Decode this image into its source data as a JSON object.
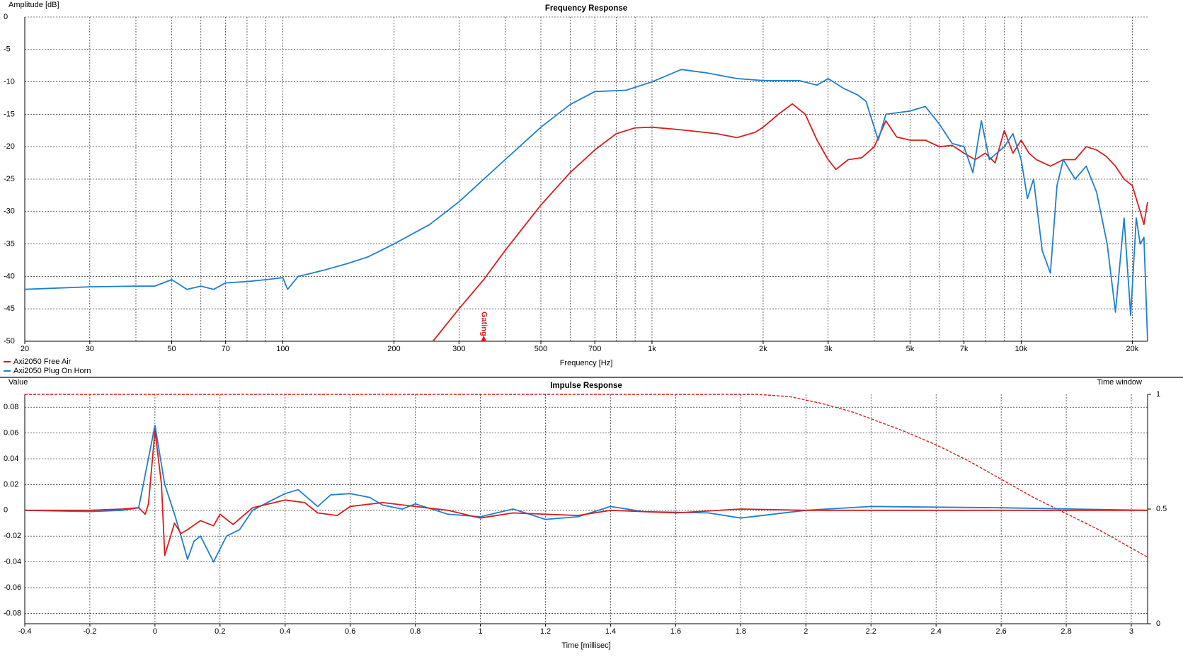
{
  "chart_data": [
    {
      "type": "line",
      "title": "Frequency Response",
      "ylabel": "Amplitude [dB]",
      "xlabel": "Frequency [Hz]",
      "xlog": true,
      "xlim": [
        20,
        22000
      ],
      "xticks": [
        20,
        30,
        50,
        70,
        100,
        200,
        300,
        500,
        700,
        {
          "value": 1000,
          "label": "1k"
        },
        {
          "value": 2000,
          "label": "2k"
        },
        {
          "value": 3000,
          "label": "3k"
        },
        {
          "value": 5000,
          "label": "5k"
        },
        {
          "value": 7000,
          "label": "7k"
        },
        {
          "value": 10000,
          "label": "10k"
        },
        {
          "value": 20000,
          "label": "20k"
        }
      ],
      "xminorticks": [
        40,
        60,
        80,
        90,
        400,
        600,
        800,
        900,
        4000,
        6000,
        8000,
        9000
      ],
      "ylim": [
        -50,
        0
      ],
      "yticks": [
        0,
        -5,
        -10,
        -15,
        -20,
        -25,
        -30,
        -35,
        -40,
        -45,
        -50
      ],
      "grid": true,
      "legend": "below",
      "annotations": [
        {
          "text": "Gating",
          "x": 350,
          "color": "#d81e1e"
        }
      ],
      "series": [
        {
          "name": "Axi2050 Free Air",
          "color": "#d81e1e",
          "x": [
            255,
            300,
            350,
            400,
            500,
            600,
            700,
            800,
            900,
            1000,
            1200,
            1500,
            1700,
            1900,
            2000,
            2200,
            2400,
            2600,
            2800,
            3000,
            3150,
            3400,
            3700,
            4000,
            4300,
            4600,
            5000,
            5500,
            6000,
            6500,
            7000,
            7500,
            8000,
            8500,
            9000,
            9500,
            10000,
            10500,
            11000,
            12000,
            13000,
            14000,
            15000,
            16000,
            17000,
            18000,
            19000,
            20000,
            21000,
            21500,
            22000
          ],
          "values": [
            -50,
            -45,
            -40.5,
            -36,
            -29,
            -24,
            -20.5,
            -18,
            -17.1,
            -17,
            -17.4,
            -18,
            -18.6,
            -17.8,
            -17,
            -15,
            -13.4,
            -15,
            -19,
            -22,
            -23.5,
            -22,
            -21.7,
            -20,
            -16,
            -18.5,
            -19,
            -19,
            -20,
            -19.8,
            -21,
            -22,
            -21,
            -22.5,
            -17.5,
            -21,
            -19,
            -21,
            -22,
            -23,
            -22,
            -22,
            -20,
            -20.5,
            -21.5,
            -23,
            -25,
            -26,
            -30,
            -32,
            -28.5
          ]
        },
        {
          "name": "Axi2050 Plug On Horn",
          "color": "#1e7fd0",
          "x": [
            20,
            30,
            40,
            45,
            50,
            55,
            60,
            65,
            70,
            80,
            90,
            100,
            103,
            110,
            120,
            130,
            150,
            170,
            200,
            250,
            300,
            400,
            500,
            600,
            700,
            850,
            1000,
            1200,
            1400,
            1700,
            2000,
            2500,
            2800,
            3000,
            3300,
            3600,
            3800,
            4100,
            4300,
            5000,
            5500,
            6000,
            6500,
            7000,
            7400,
            7800,
            8200,
            9000,
            9500,
            10000,
            10400,
            10800,
            11400,
            12000,
            12500,
            13000,
            14000,
            15000,
            16000,
            17100,
            18000,
            19000,
            19800,
            20500,
            21000,
            21500,
            22000
          ],
          "values": [
            -42,
            -41.6,
            -41.5,
            -41.5,
            -40.5,
            -42,
            -41.5,
            -42,
            -41,
            -40.8,
            -40.5,
            -40.2,
            -42,
            -40,
            -39.5,
            -39,
            -38,
            -37,
            -35,
            -32,
            -28.5,
            -22,
            -17,
            -13.5,
            -11.5,
            -11.3,
            -10,
            -8.1,
            -8.6,
            -9.5,
            -9.8,
            -9.8,
            -10.5,
            -9.5,
            -11,
            -12,
            -13,
            -19,
            -15,
            -14.5,
            -13.8,
            -16.5,
            -19.5,
            -20,
            -24,
            -16,
            -22,
            -20,
            -18,
            -22,
            -28,
            -25,
            -36,
            -39.5,
            -26,
            -22,
            -25,
            -23,
            -27,
            -35,
            -45.5,
            -31,
            -46,
            -31,
            -35,
            -34,
            -50
          ]
        }
      ]
    },
    {
      "type": "line",
      "title": "Impulse Response",
      "ylabel": "Value",
      "xlabel": "Time [millisec]",
      "y2label": "Time window",
      "xlim": [
        -0.4,
        3.05
      ],
      "xticks": [
        -0.4,
        -0.2,
        0,
        0.2,
        0.4,
        0.6,
        0.8,
        1,
        1.2,
        1.4,
        1.6,
        1.8,
        2,
        2.2,
        2.4,
        2.6,
        2.8,
        3
      ],
      "ylim": [
        -0.088,
        0.09
      ],
      "yticks": [
        0.08,
        0.06,
        0.04,
        0.02,
        0,
        -0.02,
        -0.04,
        -0.06,
        -0.08
      ],
      "y2lim": [
        0,
        1
      ],
      "y2ticks": [
        1,
        0.5,
        0
      ],
      "grid": true,
      "series": [
        {
          "color": "#d81e1e",
          "axis": "y2",
          "style": "dashed",
          "x": [
            -0.4,
            1.85,
            1.95,
            2.05,
            2.15,
            2.3,
            2.4,
            2.5,
            2.6,
            2.7,
            2.8,
            2.9,
            3.0,
            3.05
          ],
          "values": [
            1,
            1,
            0.99,
            0.96,
            0.92,
            0.84,
            0.78,
            0.71,
            0.63,
            0.55,
            0.48,
            0.41,
            0.33,
            0.29
          ]
        },
        {
          "color": "#1e7fd0",
          "x": [
            -0.4,
            -0.2,
            -0.1,
            -0.05,
            0,
            0.03,
            0.06,
            0.08,
            0.1,
            0.12,
            0.14,
            0.18,
            0.22,
            0.26,
            0.3,
            0.36,
            0.4,
            0.44,
            0.5,
            0.54,
            0.6,
            0.66,
            0.7,
            0.76,
            0.8,
            0.9,
            1.0,
            1.1,
            1.2,
            1.3,
            1.4,
            1.5,
            1.7,
            1.8,
            2.0,
            2.2,
            2.6,
            3.05
          ],
          "values": [
            0,
            -0.001,
            0,
            0.002,
            0.066,
            0.02,
            -0.003,
            -0.02,
            -0.038,
            -0.024,
            -0.02,
            -0.04,
            -0.02,
            -0.015,
            0,
            0.008,
            0.013,
            0.016,
            0.003,
            0.012,
            0.013,
            0.01,
            0.004,
            0.001,
            0.005,
            -0.003,
            -0.005,
            0.001,
            -0.007,
            -0.005,
            0.003,
            -0.001,
            -0.002,
            -0.006,
            0,
            0.003,
            0.002,
            0
          ]
        },
        {
          "color": "#d81e1e",
          "x": [
            -0.4,
            -0.2,
            -0.1,
            -0.05,
            -0.03,
            -0.02,
            0,
            0.02,
            0.03,
            0.06,
            0.08,
            0.1,
            0.14,
            0.18,
            0.2,
            0.24,
            0.3,
            0.4,
            0.46,
            0.5,
            0.56,
            0.6,
            0.7,
            0.8,
            0.9,
            1.0,
            1.1,
            1.2,
            1.3,
            1.4,
            1.6,
            1.8,
            2.0,
            2.4,
            3.05
          ],
          "values": [
            0,
            0,
            0.001,
            0.002,
            -0.003,
            0.005,
            0.062,
            0.02,
            -0.035,
            -0.01,
            -0.018,
            -0.015,
            -0.008,
            -0.012,
            -0.003,
            -0.011,
            0.002,
            0.008,
            0.006,
            -0.002,
            -0.004,
            0.003,
            0.006,
            0.003,
            0,
            -0.006,
            -0.002,
            -0.003,
            -0.004,
            0,
            -0.002,
            0.001,
            0,
            0,
            0
          ]
        }
      ]
    }
  ]
}
